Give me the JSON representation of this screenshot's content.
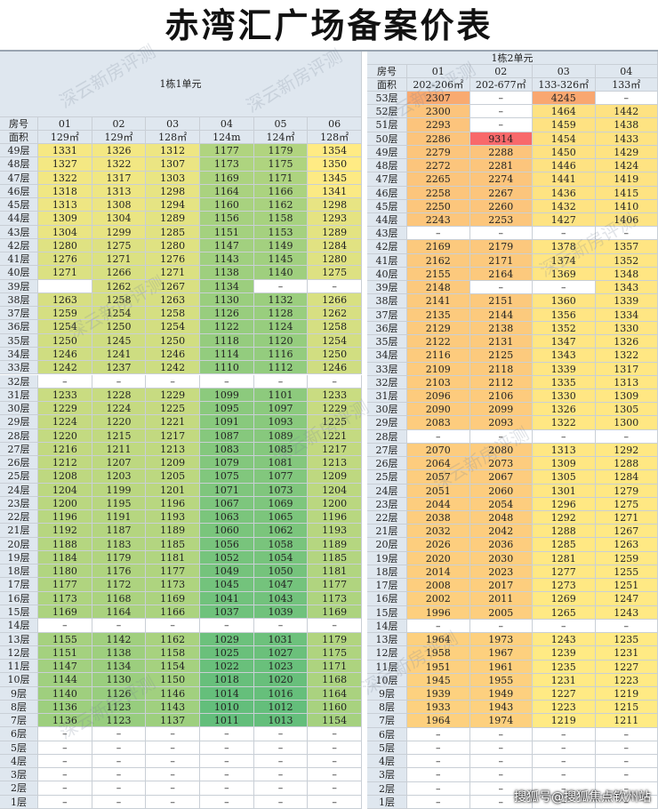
{
  "title": "赤湾汇广场备案价表",
  "watermark": "深云新房评测",
  "footer": "搜狐号@搜狐焦点钦州站",
  "tables": [
    {
      "caption": "1栋1单元",
      "room_label": "房号",
      "area_label": "面积",
      "units": [
        "01",
        "02",
        "03",
        "04",
        "05",
        "06"
      ],
      "areas": [
        "129㎡",
        "129㎡",
        "128㎡",
        "124m",
        "124㎡",
        "128㎡"
      ],
      "rows": [
        {
          "floor": "49层",
          "prices": [
            1331,
            1326,
            1312,
            1177,
            1179,
            1354
          ]
        },
        {
          "floor": "48层",
          "prices": [
            1327,
            1322,
            1307,
            1173,
            1175,
            1350
          ]
        },
        {
          "floor": "47层",
          "prices": [
            1322,
            1317,
            1303,
            1169,
            1171,
            1345
          ]
        },
        {
          "floor": "46层",
          "prices": [
            1318,
            1313,
            1298,
            1164,
            1166,
            1341
          ]
        },
        {
          "floor": "45层",
          "prices": [
            1313,
            1308,
            1294,
            1160,
            1162,
            1298
          ]
        },
        {
          "floor": "44层",
          "prices": [
            1309,
            1304,
            1289,
            1156,
            1158,
            1293
          ]
        },
        {
          "floor": "43层",
          "prices": [
            1304,
            1299,
            1285,
            1151,
            1153,
            1289
          ]
        },
        {
          "floor": "42层",
          "prices": [
            1280,
            1275,
            1280,
            1147,
            1149,
            1284
          ]
        },
        {
          "floor": "41层",
          "prices": [
            1276,
            1271,
            1276,
            1143,
            1145,
            1280
          ]
        },
        {
          "floor": "40层",
          "prices": [
            1271,
            1266,
            1271,
            1138,
            1140,
            1275
          ]
        },
        {
          "floor": "39层",
          "prices": [
            null,
            1262,
            1267,
            1134,
            "–",
            "–"
          ]
        },
        {
          "floor": "38层",
          "prices": [
            1263,
            1258,
            1263,
            1130,
            1132,
            1266
          ]
        },
        {
          "floor": "37层",
          "prices": [
            1259,
            1254,
            1258,
            1126,
            1128,
            1262
          ]
        },
        {
          "floor": "36层",
          "prices": [
            1254,
            1250,
            1254,
            1122,
            1124,
            1258
          ]
        },
        {
          "floor": "35层",
          "prices": [
            1250,
            1245,
            1250,
            1118,
            1120,
            1254
          ]
        },
        {
          "floor": "34层",
          "prices": [
            1246,
            1241,
            1246,
            1114,
            1116,
            1250
          ]
        },
        {
          "floor": "33层",
          "prices": [
            1242,
            1237,
            1242,
            1110,
            1112,
            1246
          ]
        },
        {
          "floor": "32层",
          "prices": [
            "–",
            "–",
            "–",
            "–",
            "–",
            "–"
          ]
        },
        {
          "floor": "31层",
          "prices": [
            1233,
            1228,
            1229,
            1099,
            1101,
            1233
          ]
        },
        {
          "floor": "30层",
          "prices": [
            1229,
            1224,
            1225,
            1095,
            1097,
            1229
          ]
        },
        {
          "floor": "29层",
          "prices": [
            1224,
            1220,
            1221,
            1091,
            1093,
            1225
          ]
        },
        {
          "floor": "28层",
          "prices": [
            1220,
            1215,
            1217,
            1087,
            1089,
            1221
          ]
        },
        {
          "floor": "27层",
          "prices": [
            1216,
            1211,
            1213,
            1083,
            1085,
            1217
          ]
        },
        {
          "floor": "26层",
          "prices": [
            1212,
            1207,
            1209,
            1079,
            1081,
            1213
          ]
        },
        {
          "floor": "25层",
          "prices": [
            1208,
            1203,
            1205,
            1075,
            1077,
            1209
          ]
        },
        {
          "floor": "24层",
          "prices": [
            1204,
            1199,
            1201,
            1071,
            1073,
            1204
          ]
        },
        {
          "floor": "23层",
          "prices": [
            1200,
            1195,
            1196,
            1067,
            1069,
            1200
          ]
        },
        {
          "floor": "22层",
          "prices": [
            1196,
            1191,
            1193,
            1063,
            1065,
            1196
          ]
        },
        {
          "floor": "21层",
          "prices": [
            1192,
            1187,
            1189,
            1060,
            1062,
            1193
          ]
        },
        {
          "floor": "20层",
          "prices": [
            1188,
            1183,
            1185,
            1056,
            1058,
            1189
          ]
        },
        {
          "floor": "19层",
          "prices": [
            1184,
            1179,
            1181,
            1052,
            1054,
            1185
          ]
        },
        {
          "floor": "18层",
          "prices": [
            1180,
            1176,
            1177,
            1049,
            1050,
            1181
          ]
        },
        {
          "floor": "17层",
          "prices": [
            1177,
            1172,
            1173,
            1045,
            1047,
            1177
          ]
        },
        {
          "floor": "16层",
          "prices": [
            1173,
            1168,
            1169,
            1041,
            1043,
            1173
          ]
        },
        {
          "floor": "15层",
          "prices": [
            1169,
            1164,
            1166,
            1037,
            1039,
            1169
          ]
        },
        {
          "floor": "14层",
          "prices": [
            "–",
            "–",
            "–",
            "–",
            "–",
            "–"
          ]
        },
        {
          "floor": "13层",
          "prices": [
            1155,
            1142,
            1162,
            1029,
            1031,
            1179
          ]
        },
        {
          "floor": "12层",
          "prices": [
            1151,
            1138,
            1158,
            1025,
            1027,
            1175
          ]
        },
        {
          "floor": "11层",
          "prices": [
            1147,
            1134,
            1154,
            1022,
            1023,
            1171
          ]
        },
        {
          "floor": "10层",
          "prices": [
            1144,
            1130,
            1150,
            1018,
            1020,
            1168
          ]
        },
        {
          "floor": "9层",
          "prices": [
            1140,
            1126,
            1146,
            1014,
            1016,
            1164
          ]
        },
        {
          "floor": "8层",
          "prices": [
            1136,
            1123,
            1143,
            1010,
            1012,
            1160
          ]
        },
        {
          "floor": "7层",
          "prices": [
            1136,
            1123,
            1137,
            1011,
            1013,
            1154
          ]
        },
        {
          "floor": "6层",
          "prices": [
            "–",
            "–",
            "–",
            "–",
            "–",
            "–"
          ]
        },
        {
          "floor": "5层",
          "prices": [
            "–",
            "–",
            "–",
            "–",
            "–",
            "–"
          ]
        },
        {
          "floor": "4层",
          "prices": [
            "–",
            "–",
            "–",
            "–",
            "–",
            "–"
          ]
        },
        {
          "floor": "3层",
          "prices": [
            "–",
            "–",
            "–",
            "–",
            "–",
            "–"
          ]
        },
        {
          "floor": "2层",
          "prices": [
            "–",
            "–",
            "–",
            "–",
            "–",
            "–"
          ]
        },
        {
          "floor": "1层",
          "prices": [
            "–",
            "–",
            "–",
            "–",
            "–",
            "–"
          ]
        }
      ]
    },
    {
      "caption": "1栋2单元",
      "room_label": "房号",
      "area_label": "面积",
      "units": [
        "01",
        "02",
        "03",
        "04"
      ],
      "areas": [
        "202-206㎡",
        "202-677㎡",
        "133-326㎡",
        "133㎡"
      ],
      "rows": [
        {
          "floor": "53层",
          "prices": [
            2307,
            "–",
            4245,
            "–"
          ]
        },
        {
          "floor": "52层",
          "prices": [
            2300,
            "–",
            1464,
            1442
          ]
        },
        {
          "floor": "51层",
          "prices": [
            2293,
            "–",
            1459,
            1438
          ]
        },
        {
          "floor": "50层",
          "prices": [
            2286,
            9314,
            1454,
            1433
          ]
        },
        {
          "floor": "49层",
          "prices": [
            2279,
            2288,
            1450,
            1429
          ]
        },
        {
          "floor": "48层",
          "prices": [
            2272,
            2281,
            1446,
            1424
          ]
        },
        {
          "floor": "47层",
          "prices": [
            2265,
            2274,
            1441,
            1419
          ]
        },
        {
          "floor": "46层",
          "prices": [
            2258,
            2267,
            1436,
            1415
          ]
        },
        {
          "floor": "45层",
          "prices": [
            2250,
            2260,
            1432,
            1410
          ]
        },
        {
          "floor": "44层",
          "prices": [
            2243,
            2253,
            1427,
            1406
          ]
        },
        {
          "floor": "43层",
          "prices": [
            "–",
            "–",
            "–",
            "–"
          ]
        },
        {
          "floor": "42层",
          "prices": [
            2169,
            2179,
            1378,
            1357
          ]
        },
        {
          "floor": "41层",
          "prices": [
            2162,
            2171,
            1374,
            1352
          ]
        },
        {
          "floor": "40层",
          "prices": [
            2155,
            2164,
            1369,
            1348
          ]
        },
        {
          "floor": "39层",
          "prices": [
            2148,
            "–",
            "–",
            1343
          ]
        },
        {
          "floor": "38层",
          "prices": [
            2141,
            2151,
            1360,
            1339
          ]
        },
        {
          "floor": "37层",
          "prices": [
            2135,
            2144,
            1356,
            1334
          ]
        },
        {
          "floor": "36层",
          "prices": [
            2129,
            2138,
            1352,
            1330
          ]
        },
        {
          "floor": "35层",
          "prices": [
            2122,
            2131,
            1347,
            1326
          ]
        },
        {
          "floor": "34层",
          "prices": [
            2116,
            2125,
            1343,
            1322
          ]
        },
        {
          "floor": "33层",
          "prices": [
            2109,
            2118,
            1339,
            1317
          ]
        },
        {
          "floor": "32层",
          "prices": [
            2103,
            2112,
            1335,
            1313
          ]
        },
        {
          "floor": "31层",
          "prices": [
            2096,
            2106,
            1330,
            1309
          ]
        },
        {
          "floor": "30层",
          "prices": [
            2090,
            2099,
            1326,
            1305
          ]
        },
        {
          "floor": "29层",
          "prices": [
            2083,
            2093,
            1322,
            1300
          ]
        },
        {
          "floor": "28层",
          "prices": [
            "–",
            "–",
            "–",
            "–"
          ]
        },
        {
          "floor": "27层",
          "prices": [
            2070,
            2080,
            1313,
            1292
          ]
        },
        {
          "floor": "26层",
          "prices": [
            2064,
            2073,
            1309,
            1288
          ]
        },
        {
          "floor": "25层",
          "prices": [
            2057,
            2067,
            1305,
            1284
          ]
        },
        {
          "floor": "24层",
          "prices": [
            2051,
            2060,
            1301,
            1279
          ]
        },
        {
          "floor": "23层",
          "prices": [
            2044,
            2054,
            1296,
            1275
          ]
        },
        {
          "floor": "22层",
          "prices": [
            2038,
            2048,
            1292,
            1271
          ]
        },
        {
          "floor": "21层",
          "prices": [
            2032,
            2042,
            1288,
            1267
          ]
        },
        {
          "floor": "20层",
          "prices": [
            2026,
            2036,
            1285,
            1263
          ]
        },
        {
          "floor": "19层",
          "prices": [
            2020,
            2030,
            1281,
            1259
          ]
        },
        {
          "floor": "18层",
          "prices": [
            2014,
            2023,
            1277,
            1255
          ]
        },
        {
          "floor": "17层",
          "prices": [
            2008,
            2017,
            1273,
            1251
          ]
        },
        {
          "floor": "16层",
          "prices": [
            2002,
            2011,
            1269,
            1247
          ]
        },
        {
          "floor": "15层",
          "prices": [
            1996,
            2005,
            1265,
            1243
          ]
        },
        {
          "floor": "14层",
          "prices": [
            "–",
            "–",
            "–",
            "–"
          ]
        },
        {
          "floor": "13层",
          "prices": [
            1964,
            1973,
            1243,
            1235
          ]
        },
        {
          "floor": "12层",
          "prices": [
            1958,
            1967,
            1239,
            1231
          ]
        },
        {
          "floor": "11层",
          "prices": [
            1951,
            1961,
            1235,
            1227
          ]
        },
        {
          "floor": "10层",
          "prices": [
            1945,
            1955,
            1231,
            1223
          ]
        },
        {
          "floor": "9层",
          "prices": [
            1939,
            1949,
            1227,
            1219
          ]
        },
        {
          "floor": "8层",
          "prices": [
            1933,
            1943,
            1223,
            1215
          ]
        },
        {
          "floor": "7层",
          "prices": [
            1964,
            1974,
            1219,
            1211
          ]
        },
        {
          "floor": "6层",
          "prices": [
            "–",
            "–",
            "–",
            "–"
          ]
        },
        {
          "floor": "5层",
          "prices": [
            "–",
            "–",
            "–",
            "–"
          ]
        },
        {
          "floor": "4层",
          "prices": [
            "–",
            "–",
            "–",
            "–"
          ]
        },
        {
          "floor": "3层",
          "prices": [
            "–",
            "–",
            "–",
            "–"
          ]
        },
        {
          "floor": "2层",
          "prices": [
            "–",
            "–",
            "–",
            "–"
          ]
        },
        {
          "floor": "1层",
          "prices": [
            "–",
            "–",
            "–",
            "–"
          ]
        }
      ]
    }
  ]
}
